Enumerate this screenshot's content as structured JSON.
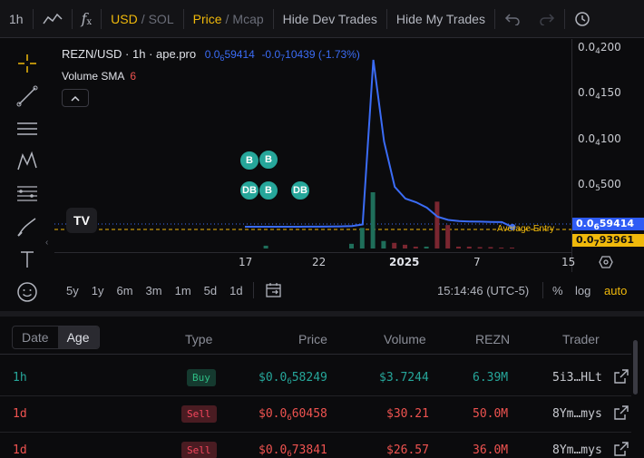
{
  "toolbar": {
    "interval": "1h",
    "indicator_label": "f",
    "currency_usd": "USD",
    "currency_sol": "SOL",
    "price": "Price",
    "mcap": "Mcap",
    "hide_dev": "Hide Dev Trades",
    "hide_my": "Hide My Trades",
    "sep": "/"
  },
  "legend": {
    "symbol": "REZN/USD · 1h · ape.pro",
    "price_prefix": "0.0",
    "price_sub": "6",
    "price_tail": "59414",
    "change_prefix": "-0.0",
    "change_sub": "7",
    "change_tail": "10439 (-1.73%)",
    "volume_sma_label": "Volume SMA",
    "volume_sma_value": "6"
  },
  "markers": [
    {
      "label": "B"
    },
    {
      "label": "B"
    },
    {
      "label": "DB"
    },
    {
      "label": "B"
    },
    {
      "label": "DB"
    }
  ],
  "tv_logo": "TV",
  "average_entry_label": "Average Entry",
  "price_axis": {
    "ticks": [
      {
        "prefix": "0.0",
        "sub": "4",
        "tail": "200"
      },
      {
        "prefix": "0.0",
        "sub": "4",
        "tail": "150"
      },
      {
        "prefix": "0.0",
        "sub": "4",
        "tail": "100"
      },
      {
        "prefix": "0.0",
        "sub": "5",
        "tail": "500"
      }
    ],
    "current": {
      "prefix": "0.0",
      "sub": "6",
      "tail": "59414"
    },
    "entry": {
      "prefix": "0.0",
      "sub": "7",
      "tail": "93961"
    }
  },
  "time_axis": [
    "17",
    "22",
    "2025",
    "7",
    "15"
  ],
  "range_buttons": [
    "5y",
    "1y",
    "6m",
    "3m",
    "1m",
    "5d",
    "1d"
  ],
  "clock": "15:14:46 (UTC-5)",
  "scale": {
    "pct": "%",
    "log": "log",
    "auto": "auto"
  },
  "table": {
    "date_tab": "Date",
    "age_tab": "Age",
    "headers": {
      "type": "Type",
      "price": "Price",
      "volume": "Volume",
      "token": "REZN",
      "trader": "Trader"
    },
    "rows": [
      {
        "age": "1h",
        "type": "Buy",
        "price_prefix": "$0.0",
        "price_sub": "6",
        "price_tail": "58249",
        "volume": "$3.7244",
        "amount": "6.39M",
        "trader": "5i3…HLt"
      },
      {
        "age": "1d",
        "type": "Sell",
        "price_prefix": "$0.0",
        "price_sub": "6",
        "price_tail": "60458",
        "volume": "$30.21",
        "amount": "50.0M",
        "trader": "8Ym…mys"
      },
      {
        "age": "1d",
        "type": "Sell",
        "price_prefix": "$0.0",
        "price_sub": "6",
        "price_tail": "73841",
        "volume": "$26.57",
        "amount": "36.0M",
        "trader": "8Ym…mys"
      }
    ]
  },
  "colors": {
    "accent": "#f0b90b",
    "line": "#3b6cf6",
    "buy": "#26a69a",
    "sell": "#ef5350"
  },
  "chart_data": {
    "type": "line",
    "price_series": [
      9.8e-07,
      9.8e-07,
      9.9e-07,
      9.9e-07,
      1e-06,
      1e-06,
      1.1e-06,
      1.1e-06,
      1.2e-06,
      1.4e-06,
      1.8e-06,
      3.5e-06,
      0.000185,
      9.5e-05,
      4.5e-05,
      3.2e-05,
      2.8e-05,
      2.2e-05,
      1.2e-05,
      8.5e-06,
      7.2e-06,
      6.8e-06,
      6.6e-06,
      6.3e-06,
      6.1e-06,
      5.9414e-07
    ],
    "volume_series": [
      0,
      0,
      0.3,
      0,
      0,
      0,
      0,
      0,
      0,
      0,
      0.5,
      2.2,
      6,
      0.8,
      0.6,
      0.4,
      0.2,
      0.2,
      5,
      2.5,
      0.2,
      0.2,
      0.15,
      0.15,
      0.1,
      0.1
    ],
    "volume_colors": [
      "g",
      "g",
      "g",
      "g",
      "g",
      "g",
      "g",
      "g",
      "g",
      "g",
      "g",
      "g",
      "g",
      "g",
      "r",
      "r",
      "r",
      "g",
      "r",
      "r",
      "r",
      "r",
      "r",
      "r",
      "r",
      "r"
    ],
    "ylim": [
      0,
      0.0002
    ]
  }
}
